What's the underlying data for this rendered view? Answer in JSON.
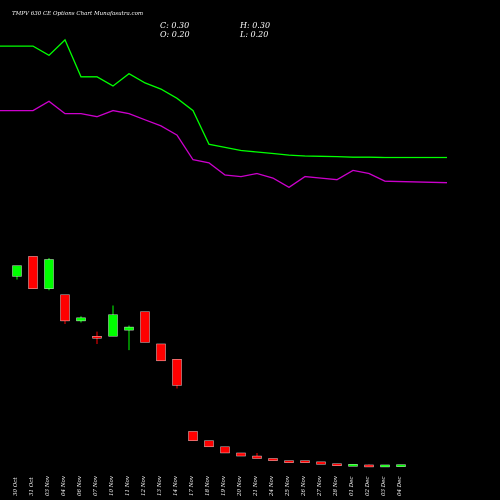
{
  "chart_data": {
    "type": "candlestick",
    "title": "TMPV 630 CE Options Chart Munafasutra.com",
    "ohlc_labels": {
      "close": "C: 0.30",
      "high": "H: 0.30",
      "open": "O: 0.20",
      "low": "L: 0.20"
    },
    "categories": [
      "30 Oct",
      "31 Oct",
      "03 Nov",
      "04 Nov",
      "06 Nov",
      "07 Nov",
      "10 Nov",
      "11 Nov",
      "12 Nov",
      "13 Nov",
      "14 Nov",
      "17 Nov",
      "18 Nov",
      "19 Nov",
      "20 Nov",
      "21 Nov",
      "24 Nov",
      "25 Nov",
      "26 Nov",
      "27 Nov",
      "28 Nov",
      "01 Dec",
      "02 Dec",
      "03 Dec",
      "04 Dec"
    ],
    "candles": [
      {
        "open": 35.0,
        "close": 38.5,
        "high": 38.5,
        "low": 34.0,
        "color": "green"
      },
      {
        "open": 41.5,
        "close": 31.0,
        "high": 41.5,
        "low": 31.0,
        "color": "red"
      },
      {
        "open": 31.0,
        "close": 40.5,
        "high": 41.0,
        "low": 30.5,
        "color": "green"
      },
      {
        "open": 29.0,
        "close": 20.5,
        "high": 29.0,
        "low": 19.5,
        "color": "red"
      },
      {
        "open": 20.5,
        "close": 21.5,
        "high": 22.0,
        "low": 20.0,
        "color": "green"
      },
      {
        "open": 15.5,
        "close": 15.0,
        "high": 17.0,
        "low": 13.0,
        "color": "red"
      },
      {
        "open": 15.5,
        "close": 22.5,
        "high": 25.5,
        "low": 15.5,
        "color": "green"
      },
      {
        "open": 17.5,
        "close": 18.5,
        "high": 19.0,
        "low": 11.0,
        "color": "green"
      },
      {
        "open": 23.5,
        "close": 13.5,
        "high": 23.5,
        "low": 13.5,
        "color": "red"
      },
      {
        "open": 13.0,
        "close": 7.5,
        "high": 13.0,
        "low": 7.5,
        "color": "red"
      },
      {
        "open": 8.0,
        "close": -0.5,
        "high": 8.0,
        "low": -1.5,
        "color": "red"
      },
      {
        "open": -15.5,
        "close": -18.5,
        "high": -15.5,
        "low": -18.5,
        "color": "red"
      },
      {
        "open": -18.5,
        "close": -20.5,
        "high": -18.5,
        "low": -20.5,
        "color": "red"
      },
      {
        "open": -20.5,
        "close": -22.5,
        "high": -20.5,
        "low": -22.5,
        "color": "red"
      },
      {
        "open": -22.5,
        "close": -23.5,
        "high": -22.5,
        "low": -23.5,
        "color": "red"
      },
      {
        "open": -23.5,
        "close": -24.3,
        "high": -22.5,
        "low": -24.3,
        "color": "red"
      },
      {
        "open": -24.3,
        "close": -25.0,
        "high": -24.3,
        "low": -25.0,
        "color": "red"
      },
      {
        "open": -25.0,
        "close": -25.5,
        "high": -25.0,
        "low": -25.5,
        "color": "red"
      },
      {
        "open": -25.0,
        "close": -25.6,
        "high": -25.0,
        "low": -25.6,
        "color": "red"
      },
      {
        "open": -25.4,
        "close": -26.2,
        "high": -25.4,
        "low": -26.2,
        "color": "red"
      },
      {
        "open": -26.0,
        "close": -26.4,
        "high": -26.0,
        "low": -26.4,
        "color": "red"
      },
      {
        "open": -26.4,
        "close": -26.2,
        "high": -26.2,
        "low": -26.4,
        "color": "green"
      },
      {
        "open": -26.4,
        "close": -26.4,
        "high": -26.2,
        "low": -26.5,
        "color": "red"
      },
      {
        "open": -26.7,
        "close": -26.4,
        "high": -26.4,
        "low": -26.7,
        "color": "green"
      },
      {
        "open": -26.7,
        "close": -26.3,
        "high": -26.3,
        "low": -26.7,
        "color": "green"
      }
    ],
    "series": [
      {
        "color": "#00ff00",
        "values": [
          110.0,
          110.0,
          107.0,
          112.0,
          100.0,
          100.0,
          97.0,
          101.0,
          98.0,
          96.0,
          93.0,
          89.0,
          78.0,
          77.0,
          76.0,
          75.5,
          75.0,
          74.5,
          74.2,
          74.1,
          74.0,
          73.8,
          73.8,
          73.7,
          73.7
        ]
      },
      {
        "color": "#cc00cc",
        "values": [
          89.0,
          89.0,
          92.0,
          88.0,
          88.0,
          87.0,
          89.0,
          88.0,
          86.0,
          84.0,
          81.0,
          73.0,
          72.0,
          68.0,
          67.5,
          68.5,
          67.0,
          64.0,
          67.5,
          67.0,
          66.5,
          69.5,
          68.5,
          66.0,
          65.5
        ]
      }
    ],
    "ylim": [
      -30,
      125
    ],
    "grid": false,
    "colors": {
      "background": "#000000",
      "up": "#00ff00",
      "down": "#ff0000",
      "text": "#ffffff"
    }
  }
}
